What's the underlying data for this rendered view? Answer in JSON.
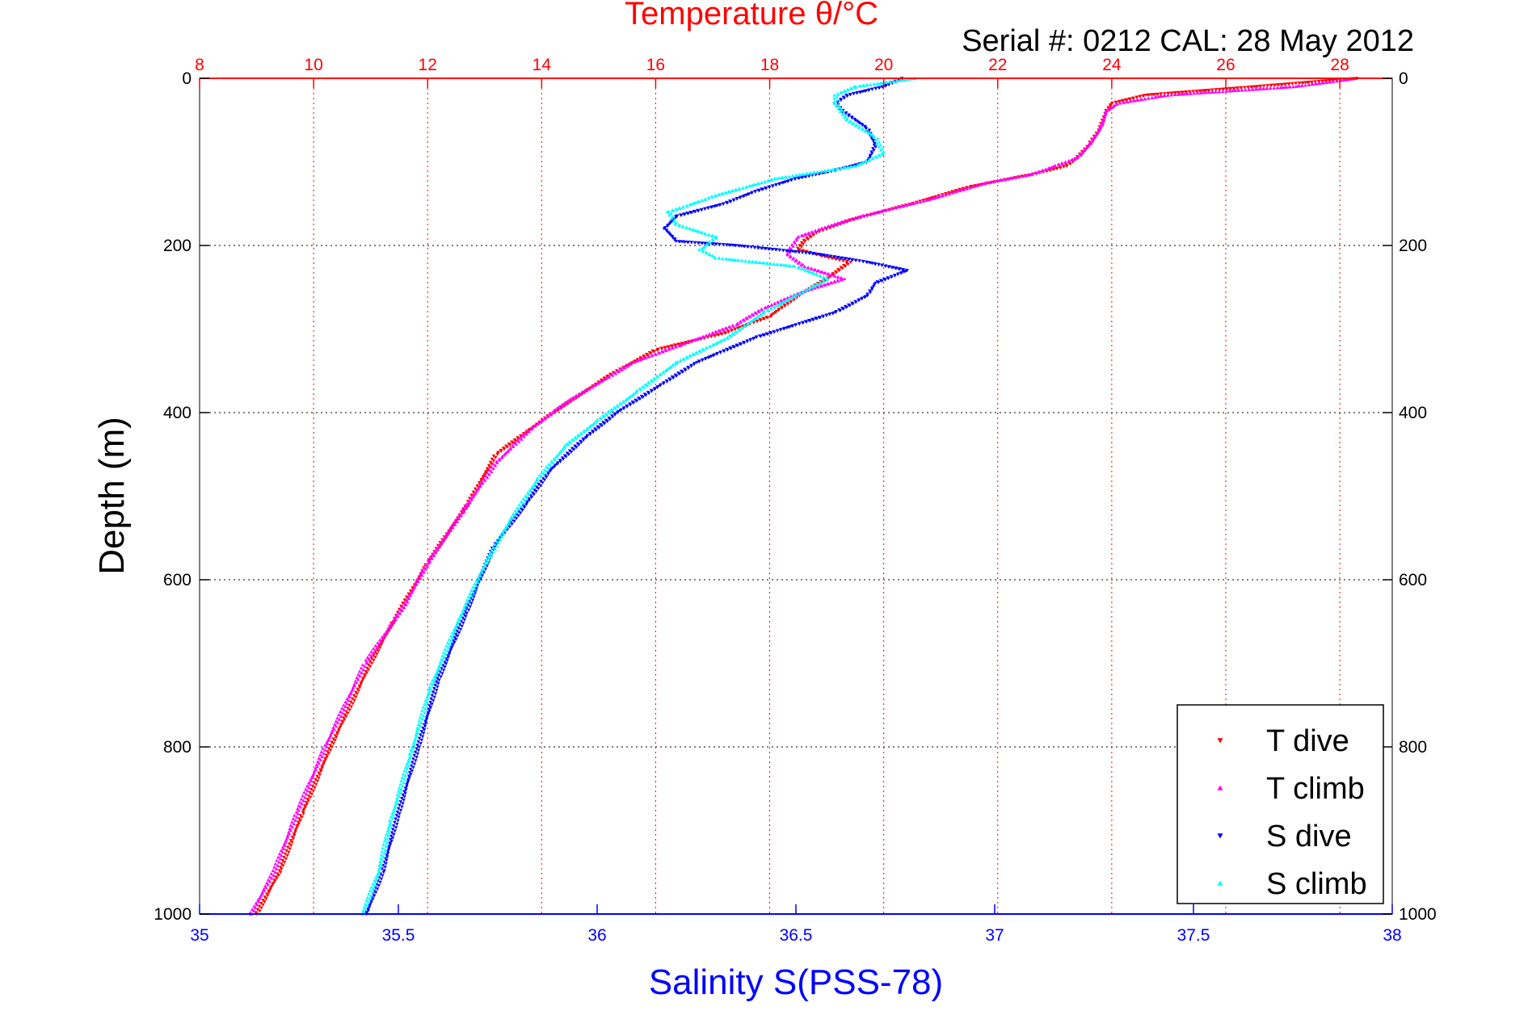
{
  "chart_data": {
    "type": "scatter",
    "title": "Temperature θ/°C",
    "subtitle": "Serial #: 0212  CAL: 28 May 2012",
    "xlabel": "Salinity S(PSS-78)",
    "ylabel": "Depth (m)",
    "x_bottom": {
      "range": [
        35,
        38
      ],
      "ticks": [
        "35",
        "35.5",
        "36",
        "36.5",
        "37",
        "37.5",
        "38"
      ],
      "color": "#0000ff"
    },
    "x_top": {
      "range": [
        8,
        28.92
      ],
      "ticks": [
        "8",
        "10",
        "12",
        "14",
        "16",
        "18",
        "20",
        "22",
        "24",
        "26",
        "28"
      ],
      "color": "#ff0000"
    },
    "y": {
      "range": [
        0,
        1000
      ],
      "ticks": [
        "0",
        "200",
        "400",
        "600",
        "800",
        "1000"
      ],
      "reversed": true
    },
    "grid": true,
    "legend_position": "bottom-right",
    "series": [
      {
        "name": "T dive",
        "axis": "temperature",
        "color": "#ff0000",
        "marker": "triangle-down",
        "points": [
          [
            28.3,
            0
          ],
          [
            26.5,
            10
          ],
          [
            24.6,
            20
          ],
          [
            24.0,
            30
          ],
          [
            23.9,
            40
          ],
          [
            23.8,
            60
          ],
          [
            23.6,
            80
          ],
          [
            23.4,
            95
          ],
          [
            23.2,
            105
          ],
          [
            22.6,
            115
          ],
          [
            21.5,
            130
          ],
          [
            20.5,
            150
          ],
          [
            19.4,
            170
          ],
          [
            18.8,
            185
          ],
          [
            18.6,
            195
          ],
          [
            18.5,
            205
          ],
          [
            18.9,
            212
          ],
          [
            19.4,
            220
          ],
          [
            19.0,
            240
          ],
          [
            18.5,
            260
          ],
          [
            18.0,
            285
          ],
          [
            17.2,
            305
          ],
          [
            16.0,
            325
          ],
          [
            15.2,
            355
          ],
          [
            14.2,
            400
          ],
          [
            13.2,
            450
          ],
          [
            12.7,
            510
          ],
          [
            12.0,
            580
          ],
          [
            11.4,
            650
          ],
          [
            11.0,
            700
          ],
          [
            10.3,
            800
          ],
          [
            9.8,
            880
          ],
          [
            9.4,
            950
          ],
          [
            9.0,
            1000
          ]
        ]
      },
      {
        "name": "T climb",
        "axis": "temperature",
        "color": "#ff00ff",
        "marker": "triangle-up",
        "points": [
          [
            28.3,
            0
          ],
          [
            27.2,
            10
          ],
          [
            25.0,
            20
          ],
          [
            24.1,
            30
          ],
          [
            23.9,
            40
          ],
          [
            23.8,
            60
          ],
          [
            23.6,
            80
          ],
          [
            23.4,
            95
          ],
          [
            23.0,
            105
          ],
          [
            22.6,
            115
          ],
          [
            21.8,
            125
          ],
          [
            20.8,
            145
          ],
          [
            19.6,
            165
          ],
          [
            18.9,
            180
          ],
          [
            18.5,
            190
          ],
          [
            18.3,
            210
          ],
          [
            18.6,
            225
          ],
          [
            19.3,
            240
          ],
          [
            18.6,
            255
          ],
          [
            17.9,
            275
          ],
          [
            17.4,
            295
          ],
          [
            16.4,
            320
          ],
          [
            15.6,
            340
          ],
          [
            14.5,
            385
          ],
          [
            13.8,
            420
          ],
          [
            13.2,
            460
          ],
          [
            12.6,
            520
          ],
          [
            12.0,
            580
          ],
          [
            11.6,
            630
          ],
          [
            10.9,
            700
          ],
          [
            10.2,
            800
          ],
          [
            9.7,
            880
          ],
          [
            9.3,
            950
          ],
          [
            8.9,
            1000
          ]
        ]
      },
      {
        "name": "S dive",
        "axis": "salinity",
        "color": "#0000ff",
        "marker": "triangle-down",
        "points": [
          [
            36.77,
            0
          ],
          [
            36.72,
            10
          ],
          [
            36.63,
            20
          ],
          [
            36.6,
            30
          ],
          [
            36.62,
            40
          ],
          [
            36.68,
            60
          ],
          [
            36.7,
            80
          ],
          [
            36.68,
            100
          ],
          [
            36.6,
            110
          ],
          [
            36.5,
            120
          ],
          [
            36.4,
            135
          ],
          [
            36.32,
            150
          ],
          [
            36.2,
            165
          ],
          [
            36.17,
            180
          ],
          [
            36.2,
            195
          ],
          [
            36.35,
            200
          ],
          [
            36.55,
            210
          ],
          [
            36.68,
            220
          ],
          [
            36.78,
            230
          ],
          [
            36.7,
            245
          ],
          [
            36.68,
            260
          ],
          [
            36.6,
            280
          ],
          [
            36.4,
            310
          ],
          [
            36.25,
            340
          ],
          [
            36.15,
            370
          ],
          [
            36.05,
            400
          ],
          [
            35.97,
            430
          ],
          [
            35.88,
            470
          ],
          [
            35.82,
            510
          ],
          [
            35.74,
            560
          ],
          [
            35.67,
            640
          ],
          [
            35.6,
            720
          ],
          [
            35.55,
            800
          ],
          [
            35.5,
            880
          ],
          [
            35.46,
            950
          ],
          [
            35.42,
            1000
          ]
        ]
      },
      {
        "name": "S climb",
        "axis": "salinity",
        "color": "#00ffff",
        "marker": "triangle-up",
        "points": [
          [
            36.8,
            0
          ],
          [
            36.65,
            10
          ],
          [
            36.6,
            20
          ],
          [
            36.6,
            30
          ],
          [
            36.63,
            50
          ],
          [
            36.7,
            70
          ],
          [
            36.72,
            90
          ],
          [
            36.65,
            105
          ],
          [
            36.45,
            120
          ],
          [
            36.3,
            140
          ],
          [
            36.18,
            160
          ],
          [
            36.2,
            175
          ],
          [
            36.3,
            190
          ],
          [
            36.26,
            205
          ],
          [
            36.3,
            215
          ],
          [
            36.5,
            225
          ],
          [
            36.58,
            240
          ],
          [
            36.5,
            260
          ],
          [
            36.42,
            280
          ],
          [
            36.33,
            310
          ],
          [
            36.2,
            340
          ],
          [
            36.1,
            375
          ],
          [
            36.0,
            410
          ],
          [
            35.92,
            440
          ],
          [
            35.85,
            480
          ],
          [
            35.78,
            530
          ],
          [
            35.72,
            580
          ],
          [
            35.65,
            650
          ],
          [
            35.58,
            730
          ],
          [
            35.53,
            810
          ],
          [
            35.48,
            890
          ],
          [
            35.45,
            950
          ],
          [
            35.41,
            1000
          ]
        ]
      }
    ]
  }
}
